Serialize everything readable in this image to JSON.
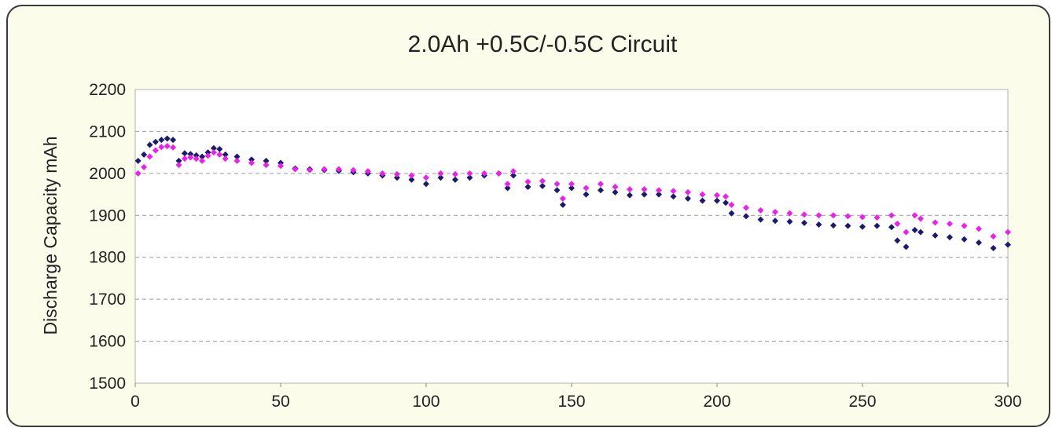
{
  "chart_data": {
    "type": "scatter",
    "title": "2.0Ah +0.5C/-0.5C Circuit",
    "xlabel": "",
    "ylabel": "Discharge Capacity mAh",
    "xlim": [
      0,
      300
    ],
    "ylim": [
      1500,
      2200
    ],
    "x_ticks": [
      "0",
      "50",
      "100",
      "150",
      "200",
      "250",
      "300"
    ],
    "y_ticks": [
      "1500",
      "1600",
      "1700",
      "1800",
      "1900",
      "2000",
      "2100",
      "2200"
    ],
    "grid": "horizontal dashed",
    "legend": "none",
    "series": [
      {
        "color": "#1a1a6e",
        "points": [
          [
            1,
            2030
          ],
          [
            3,
            2045
          ],
          [
            5,
            2068
          ],
          [
            7,
            2075
          ],
          [
            9,
            2080
          ],
          [
            11,
            2083
          ],
          [
            13,
            2080
          ],
          [
            15,
            2030
          ],
          [
            17,
            2048
          ],
          [
            19,
            2046
          ],
          [
            21,
            2043
          ],
          [
            23,
            2040
          ],
          [
            25,
            2050
          ],
          [
            27,
            2060
          ],
          [
            29,
            2058
          ],
          [
            31,
            2045
          ],
          [
            35,
            2040
          ],
          [
            40,
            2033
          ],
          [
            45,
            2030
          ],
          [
            50,
            2025
          ],
          [
            55,
            2012
          ],
          [
            60,
            2010
          ],
          [
            65,
            2008
          ],
          [
            70,
            2006
          ],
          [
            75,
            2003
          ],
          [
            80,
            2000
          ],
          [
            85,
            1995
          ],
          [
            90,
            1990
          ],
          [
            95,
            1985
          ],
          [
            100,
            1975
          ],
          [
            105,
            1990
          ],
          [
            110,
            1985
          ],
          [
            115,
            1990
          ],
          [
            120,
            1995
          ],
          [
            125,
            2000
          ],
          [
            128,
            1965
          ],
          [
            130,
            1995
          ],
          [
            135,
            1968
          ],
          [
            140,
            1970
          ],
          [
            145,
            1960
          ],
          [
            147,
            1925
          ],
          [
            150,
            1965
          ],
          [
            155,
            1950
          ],
          [
            160,
            1960
          ],
          [
            165,
            1955
          ],
          [
            170,
            1948
          ],
          [
            175,
            1950
          ],
          [
            180,
            1950
          ],
          [
            185,
            1945
          ],
          [
            190,
            1940
          ],
          [
            195,
            1935
          ],
          [
            200,
            1935
          ],
          [
            203,
            1930
          ],
          [
            205,
            1905
          ],
          [
            210,
            1898
          ],
          [
            215,
            1890
          ],
          [
            220,
            1887
          ],
          [
            225,
            1885
          ],
          [
            230,
            1882
          ],
          [
            235,
            1878
          ],
          [
            240,
            1876
          ],
          [
            245,
            1875
          ],
          [
            250,
            1873
          ],
          [
            255,
            1875
          ],
          [
            260,
            1872
          ],
          [
            262,
            1840
          ],
          [
            265,
            1825
          ],
          [
            268,
            1865
          ],
          [
            270,
            1860
          ],
          [
            275,
            1852
          ],
          [
            280,
            1848
          ],
          [
            285,
            1843
          ],
          [
            290,
            1835
          ],
          [
            295,
            1822
          ],
          [
            300,
            1830
          ]
        ]
      },
      {
        "color": "#ee1fee",
        "points": [
          [
            1,
            2000
          ],
          [
            3,
            2015
          ],
          [
            5,
            2040
          ],
          [
            7,
            2055
          ],
          [
            9,
            2063
          ],
          [
            11,
            2065
          ],
          [
            13,
            2062
          ],
          [
            15,
            2020
          ],
          [
            17,
            2035
          ],
          [
            19,
            2038
          ],
          [
            21,
            2035
          ],
          [
            23,
            2030
          ],
          [
            25,
            2042
          ],
          [
            27,
            2050
          ],
          [
            29,
            2045
          ],
          [
            31,
            2035
          ],
          [
            35,
            2030
          ],
          [
            40,
            2025
          ],
          [
            45,
            2020
          ],
          [
            50,
            2018
          ],
          [
            55,
            2010
          ],
          [
            60,
            2008
          ],
          [
            65,
            2010
          ],
          [
            70,
            2010
          ],
          [
            75,
            2008
          ],
          [
            80,
            2005
          ],
          [
            85,
            2000
          ],
          [
            90,
            1998
          ],
          [
            95,
            1995
          ],
          [
            100,
            1990
          ],
          [
            105,
            2000
          ],
          [
            110,
            1998
          ],
          [
            115,
            2000
          ],
          [
            120,
            2000
          ],
          [
            125,
            2000
          ],
          [
            128,
            1975
          ],
          [
            130,
            2005
          ],
          [
            135,
            1980
          ],
          [
            140,
            1982
          ],
          [
            145,
            1975
          ],
          [
            147,
            1940
          ],
          [
            150,
            1975
          ],
          [
            155,
            1965
          ],
          [
            160,
            1975
          ],
          [
            165,
            1968
          ],
          [
            170,
            1962
          ],
          [
            175,
            1962
          ],
          [
            180,
            1960
          ],
          [
            185,
            1958
          ],
          [
            190,
            1955
          ],
          [
            195,
            1950
          ],
          [
            200,
            1948
          ],
          [
            203,
            1945
          ],
          [
            205,
            1925
          ],
          [
            210,
            1918
          ],
          [
            215,
            1912
          ],
          [
            220,
            1908
          ],
          [
            225,
            1905
          ],
          [
            230,
            1902
          ],
          [
            235,
            1900
          ],
          [
            240,
            1900
          ],
          [
            245,
            1898
          ],
          [
            250,
            1896
          ],
          [
            255,
            1895
          ],
          [
            260,
            1900
          ],
          [
            262,
            1880
          ],
          [
            265,
            1860
          ],
          [
            268,
            1900
          ],
          [
            270,
            1892
          ],
          [
            275,
            1883
          ],
          [
            280,
            1880
          ],
          [
            285,
            1875
          ],
          [
            290,
            1868
          ],
          [
            295,
            1850
          ],
          [
            300,
            1860
          ]
        ]
      }
    ]
  }
}
